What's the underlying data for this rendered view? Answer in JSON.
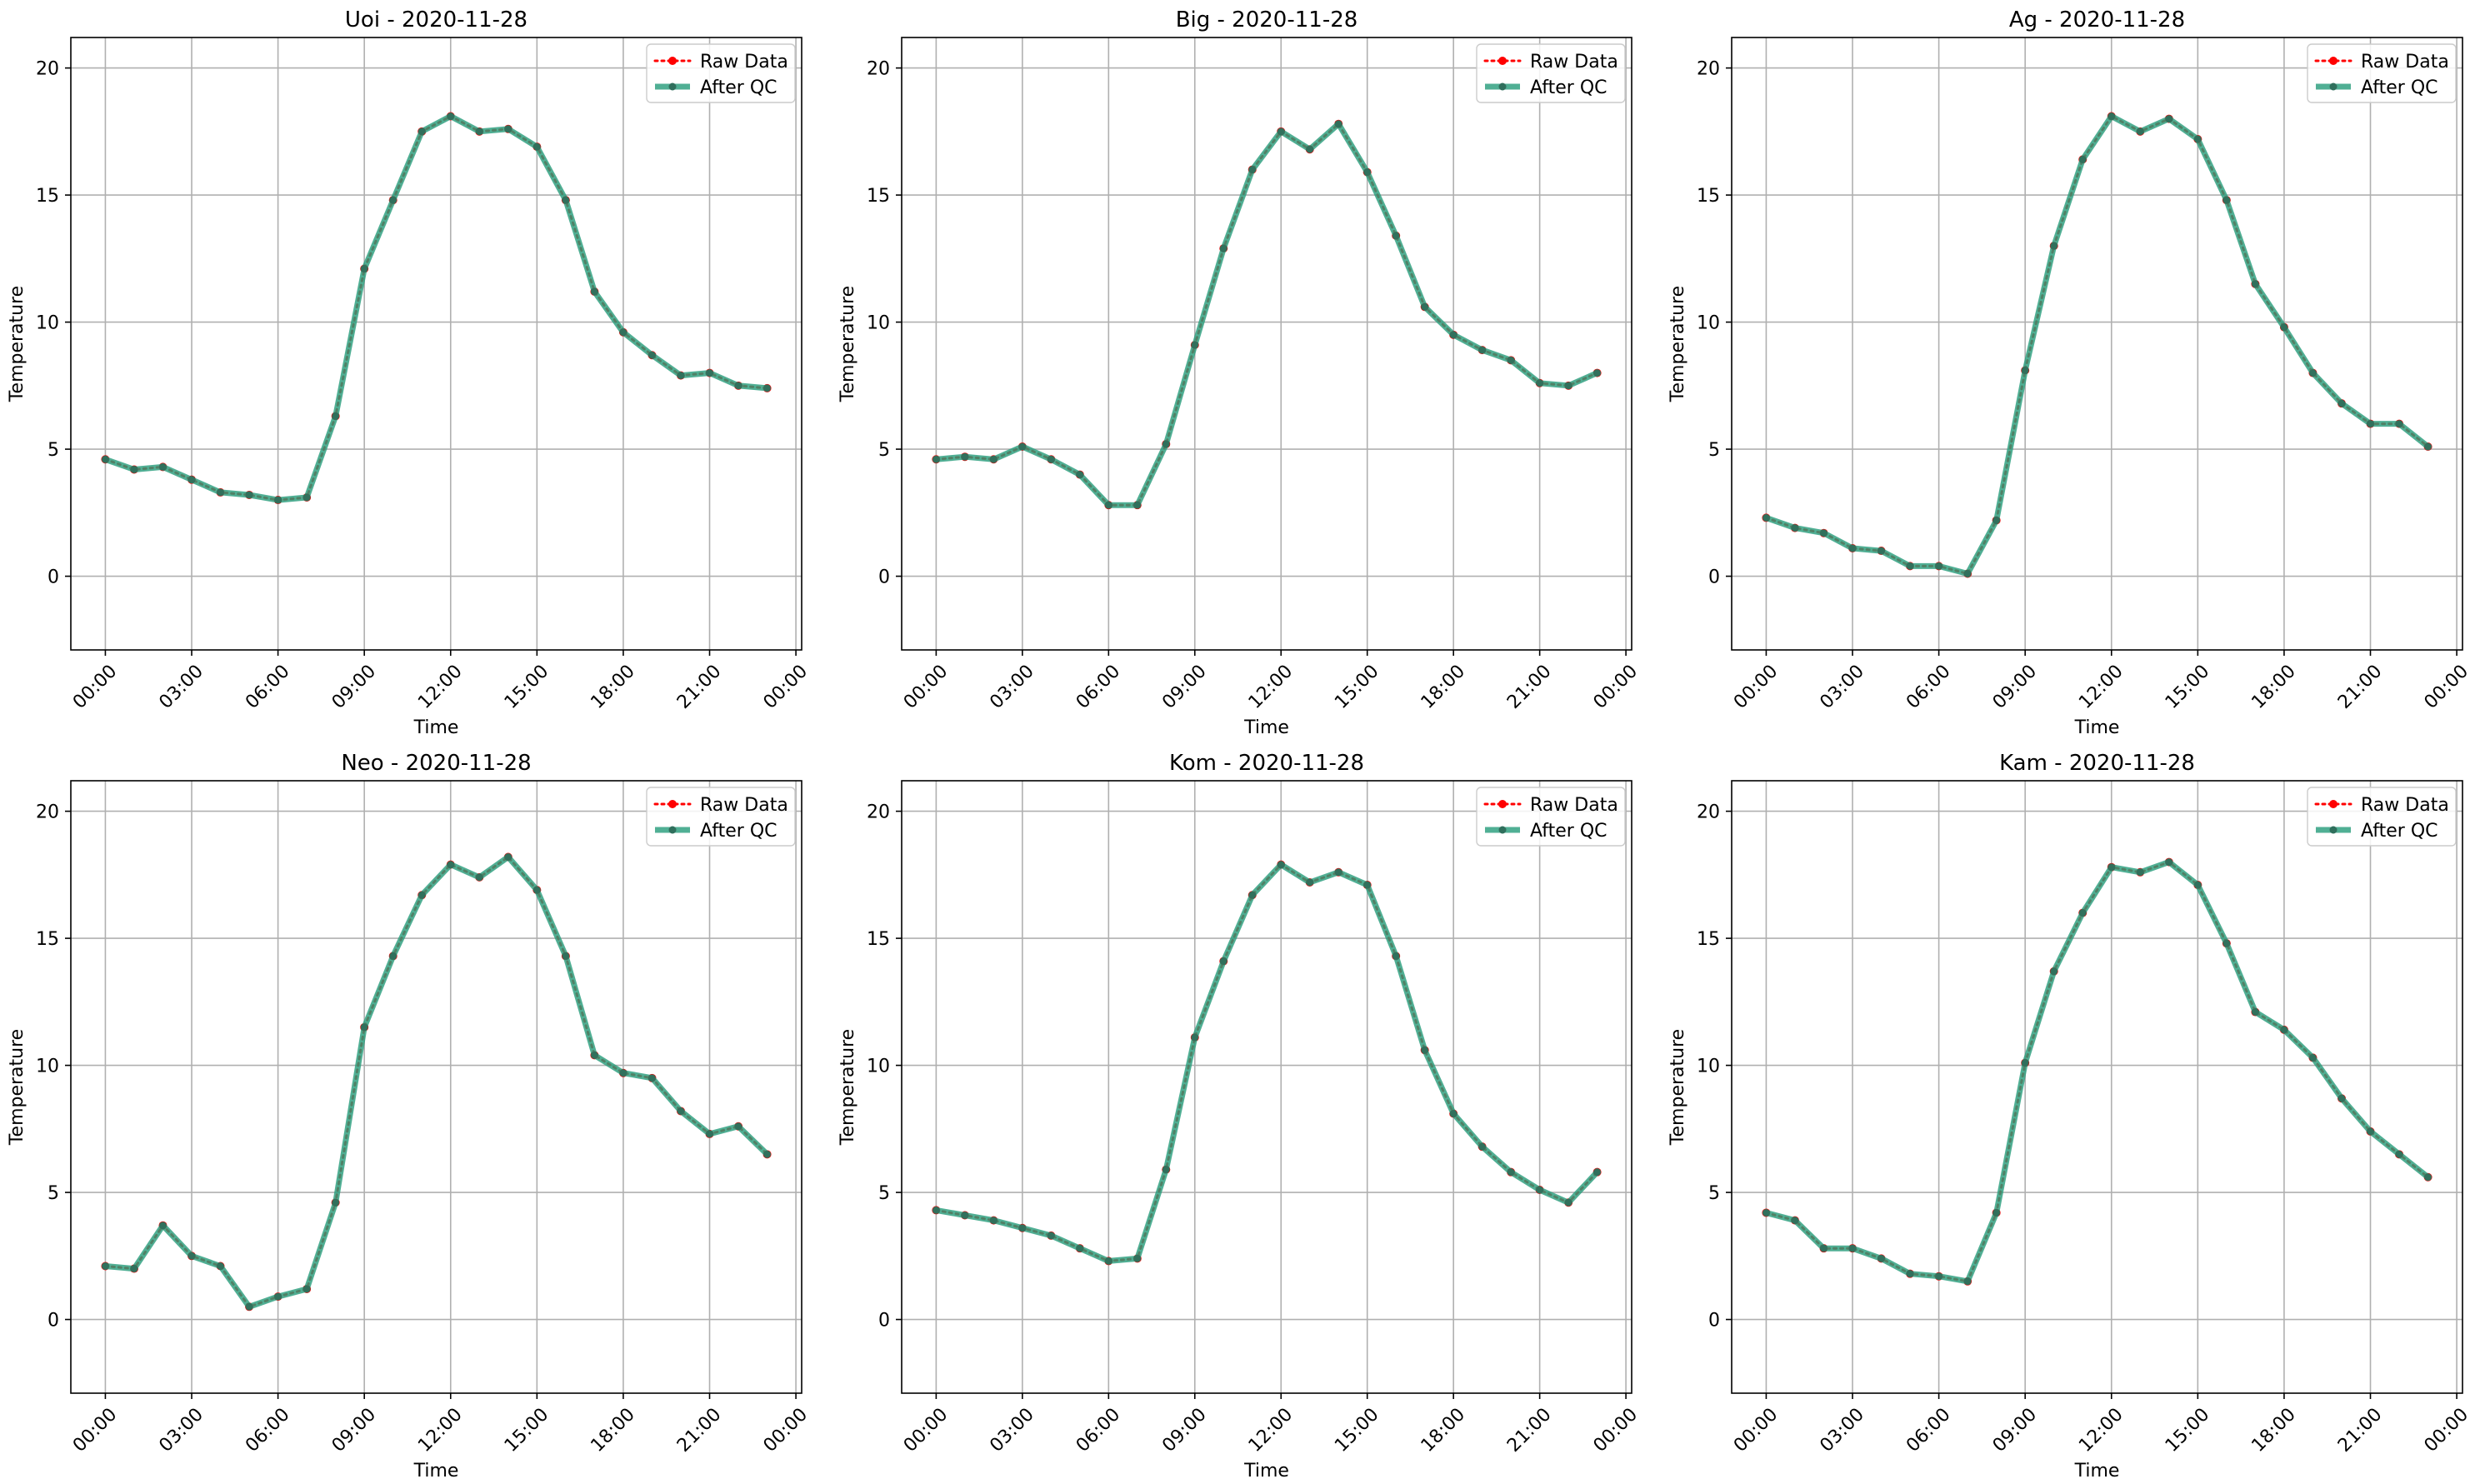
{
  "chart_data": [
    {
      "type": "line",
      "title": "Uoi - 2020-11-28",
      "xlabel": "Time",
      "ylabel": "Temperature",
      "xticks": [
        "00:00",
        "03:00",
        "06:00",
        "09:00",
        "12:00",
        "15:00",
        "18:00",
        "21:00",
        "00:00"
      ],
      "yticks": [
        0,
        5,
        10,
        15,
        20
      ],
      "xlim_hours": [
        -1.2,
        24.2
      ],
      "ylim": [
        -2.9,
        21.2
      ],
      "grid": true,
      "legend_position": "top-right",
      "x_hours": [
        0,
        1,
        2,
        3,
        4,
        5,
        6,
        7,
        8,
        9,
        10,
        11,
        12,
        13,
        14,
        15,
        16,
        17,
        18,
        19,
        20,
        21,
        22,
        23
      ],
      "series": [
        {
          "name": "Raw Data",
          "color": "#ff0000",
          "style": "dotted",
          "values": [
            4.6,
            4.2,
            4.3,
            3.8,
            3.3,
            3.2,
            3.0,
            3.1,
            6.3,
            12.1,
            14.8,
            17.5,
            18.1,
            17.5,
            17.6,
            16.9,
            14.8,
            11.2,
            9.6,
            8.7,
            7.9,
            8.0,
            7.5,
            7.4
          ]
        },
        {
          "name": "After QC",
          "color": "#2a9d7c",
          "style": "solid",
          "values": [
            4.6,
            4.2,
            4.3,
            3.8,
            3.3,
            3.2,
            3.0,
            3.1,
            6.3,
            12.1,
            14.8,
            17.5,
            18.1,
            17.5,
            17.6,
            16.9,
            14.8,
            11.2,
            9.6,
            8.7,
            7.9,
            8.0,
            7.5,
            7.4
          ]
        }
      ]
    },
    {
      "type": "line",
      "title": "Big - 2020-11-28",
      "xlabel": "Time",
      "ylabel": "Temperature",
      "xticks": [
        "00:00",
        "03:00",
        "06:00",
        "09:00",
        "12:00",
        "15:00",
        "18:00",
        "21:00",
        "00:00"
      ],
      "yticks": [
        0,
        5,
        10,
        15,
        20
      ],
      "xlim_hours": [
        -1.2,
        24.2
      ],
      "ylim": [
        -2.9,
        21.2
      ],
      "grid": true,
      "legend_position": "top-right",
      "x_hours": [
        0,
        1,
        2,
        3,
        4,
        5,
        6,
        7,
        8,
        9,
        10,
        11,
        12,
        13,
        14,
        15,
        16,
        17,
        18,
        19,
        20,
        21,
        22,
        23
      ],
      "series": [
        {
          "name": "Raw Data",
          "color": "#ff0000",
          "style": "dotted",
          "values": [
            4.6,
            4.7,
            4.6,
            5.1,
            4.6,
            4.0,
            2.8,
            2.8,
            5.2,
            9.1,
            12.9,
            16.0,
            17.5,
            16.8,
            17.8,
            15.9,
            13.4,
            10.6,
            9.5,
            8.9,
            8.5,
            7.6,
            7.5,
            8.0
          ]
        },
        {
          "name": "After QC",
          "color": "#2a9d7c",
          "style": "solid",
          "values": [
            4.6,
            4.7,
            4.6,
            5.1,
            4.6,
            4.0,
            2.8,
            2.8,
            5.2,
            9.1,
            12.9,
            16.0,
            17.5,
            16.8,
            17.8,
            15.9,
            13.4,
            10.6,
            9.5,
            8.9,
            8.5,
            7.6,
            7.5,
            8.0
          ]
        }
      ]
    },
    {
      "type": "line",
      "title": "Ag - 2020-11-28",
      "xlabel": "Time",
      "ylabel": "Temperature",
      "xticks": [
        "00:00",
        "03:00",
        "06:00",
        "09:00",
        "12:00",
        "15:00",
        "18:00",
        "21:00",
        "00:00"
      ],
      "yticks": [
        0,
        5,
        10,
        15,
        20
      ],
      "xlim_hours": [
        -1.2,
        24.2
      ],
      "ylim": [
        -2.9,
        21.2
      ],
      "grid": true,
      "legend_position": "top-right",
      "x_hours": [
        0,
        1,
        2,
        3,
        4,
        5,
        6,
        7,
        8,
        9,
        10,
        11,
        12,
        13,
        14,
        15,
        16,
        17,
        18,
        19,
        20,
        21,
        22,
        23
      ],
      "series": [
        {
          "name": "Raw Data",
          "color": "#ff0000",
          "style": "dotted",
          "values": [
            2.3,
            1.9,
            1.7,
            1.1,
            1.0,
            0.4,
            0.4,
            0.1,
            2.2,
            8.1,
            13.0,
            16.4,
            18.1,
            17.5,
            18.0,
            17.2,
            14.8,
            11.5,
            9.8,
            8.0,
            6.8,
            6.0,
            6.0,
            5.1
          ]
        },
        {
          "name": "After QC",
          "color": "#2a9d7c",
          "style": "solid",
          "values": [
            2.3,
            1.9,
            1.7,
            1.1,
            1.0,
            0.4,
            0.4,
            0.1,
            2.2,
            8.1,
            13.0,
            16.4,
            18.1,
            17.5,
            18.0,
            17.2,
            14.8,
            11.5,
            9.8,
            8.0,
            6.8,
            6.0,
            6.0,
            5.1
          ]
        }
      ]
    },
    {
      "type": "line",
      "title": "Neo - 2020-11-28",
      "xlabel": "Time",
      "ylabel": "Temperature",
      "xticks": [
        "00:00",
        "03:00",
        "06:00",
        "09:00",
        "12:00",
        "15:00",
        "18:00",
        "21:00",
        "00:00"
      ],
      "yticks": [
        0,
        5,
        10,
        15,
        20
      ],
      "xlim_hours": [
        -1.2,
        24.2
      ],
      "ylim": [
        -2.9,
        21.2
      ],
      "grid": true,
      "legend_position": "top-right",
      "x_hours": [
        0,
        1,
        2,
        3,
        4,
        5,
        6,
        7,
        8,
        9,
        10,
        11,
        12,
        13,
        14,
        15,
        16,
        17,
        18,
        19,
        20,
        21,
        22,
        23
      ],
      "series": [
        {
          "name": "Raw Data",
          "color": "#ff0000",
          "style": "dotted",
          "values": [
            2.1,
            2.0,
            3.7,
            2.5,
            2.1,
            0.5,
            0.9,
            1.2,
            4.6,
            11.5,
            14.3,
            16.7,
            17.9,
            17.4,
            18.2,
            16.9,
            14.3,
            10.4,
            9.7,
            9.5,
            8.2,
            7.3,
            7.6,
            6.5
          ]
        },
        {
          "name": "After QC",
          "color": "#2a9d7c",
          "style": "solid",
          "values": [
            2.1,
            2.0,
            3.7,
            2.5,
            2.1,
            0.5,
            0.9,
            1.2,
            4.6,
            11.5,
            14.3,
            16.7,
            17.9,
            17.4,
            18.2,
            16.9,
            14.3,
            10.4,
            9.7,
            9.5,
            8.2,
            7.3,
            7.6,
            6.5
          ]
        }
      ]
    },
    {
      "type": "line",
      "title": "Kom - 2020-11-28",
      "xlabel": "Time",
      "ylabel": "Temperature",
      "xticks": [
        "00:00",
        "03:00",
        "06:00",
        "09:00",
        "12:00",
        "15:00",
        "18:00",
        "21:00",
        "00:00"
      ],
      "yticks": [
        0,
        5,
        10,
        15,
        20
      ],
      "xlim_hours": [
        -1.2,
        24.2
      ],
      "ylim": [
        -2.9,
        21.2
      ],
      "grid": true,
      "legend_position": "top-right",
      "x_hours": [
        0,
        1,
        2,
        3,
        4,
        5,
        6,
        7,
        8,
        9,
        10,
        11,
        12,
        13,
        14,
        15,
        16,
        17,
        18,
        19,
        20,
        21,
        22,
        23
      ],
      "series": [
        {
          "name": "Raw Data",
          "color": "#ff0000",
          "style": "dotted",
          "values": [
            4.3,
            4.1,
            3.9,
            3.6,
            3.3,
            2.8,
            2.3,
            2.4,
            5.9,
            11.1,
            14.1,
            16.7,
            17.9,
            17.2,
            17.6,
            17.1,
            14.3,
            10.6,
            8.1,
            6.8,
            5.8,
            5.1,
            4.6,
            5.8
          ]
        },
        {
          "name": "After QC",
          "color": "#2a9d7c",
          "style": "solid",
          "values": [
            4.3,
            4.1,
            3.9,
            3.6,
            3.3,
            2.8,
            2.3,
            2.4,
            5.9,
            11.1,
            14.1,
            16.7,
            17.9,
            17.2,
            17.6,
            17.1,
            14.3,
            10.6,
            8.1,
            6.8,
            5.8,
            5.1,
            4.6,
            5.8
          ]
        }
      ]
    },
    {
      "type": "line",
      "title": "Kam - 2020-11-28",
      "xlabel": "Time",
      "ylabel": "Temperature",
      "xticks": [
        "00:00",
        "03:00",
        "06:00",
        "09:00",
        "12:00",
        "15:00",
        "18:00",
        "21:00",
        "00:00"
      ],
      "yticks": [
        0,
        5,
        10,
        15,
        20
      ],
      "xlim_hours": [
        -1.2,
        24.2
      ],
      "ylim": [
        -2.9,
        21.2
      ],
      "grid": true,
      "legend_position": "top-right",
      "x_hours": [
        0,
        1,
        2,
        3,
        4,
        5,
        6,
        7,
        8,
        9,
        10,
        11,
        12,
        13,
        14,
        15,
        16,
        17,
        18,
        19,
        20,
        21,
        22,
        23
      ],
      "series": [
        {
          "name": "Raw Data",
          "color": "#ff0000",
          "style": "dotted",
          "values": [
            4.2,
            3.9,
            2.8,
            2.8,
            2.4,
            1.8,
            1.7,
            1.5,
            4.2,
            10.1,
            13.7,
            16.0,
            17.8,
            17.6,
            18.0,
            17.1,
            14.8,
            12.1,
            11.4,
            10.3,
            8.7,
            7.4,
            6.5,
            5.6
          ]
        },
        {
          "name": "After QC",
          "color": "#2a9d7c",
          "style": "solid",
          "values": [
            4.2,
            3.9,
            2.8,
            2.8,
            2.4,
            1.8,
            1.7,
            1.5,
            4.2,
            10.1,
            13.7,
            16.0,
            17.8,
            17.6,
            18.0,
            17.1,
            14.8,
            12.1,
            11.4,
            10.3,
            8.7,
            7.4,
            6.5,
            5.6
          ]
        }
      ]
    }
  ]
}
